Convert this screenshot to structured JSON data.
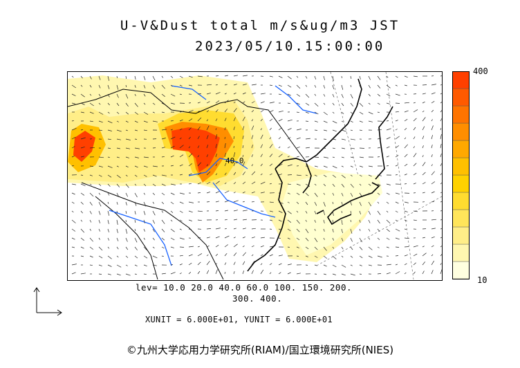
{
  "title": {
    "line1": "U-V&Dust total m/s&ug/m3 JST",
    "line2": "2023/05/10.15:00:00"
  },
  "colorbar": {
    "max_label": "400",
    "min_label": "10",
    "colors": [
      "#ffffe0",
      "#fff7b0",
      "#ffee88",
      "#ffe55a",
      "#ffdc30",
      "#ffd200",
      "#ffc000",
      "#ffa800",
      "#ff8e00",
      "#ff7400",
      "#ff5a00",
      "#ff4000"
    ]
  },
  "levels": {
    "line1": "lev= 10.0 20.0 40.0 60.0 100. 150. 200.",
    "line2": "300. 400."
  },
  "contour_label": "40.0",
  "unit_text": "XUNIT = 6.000E+01, YUNIT = 6.000E+01",
  "copyright": "©九州大学応用力学研究所(RIAM)/国立環境研究所(NIES)"
}
